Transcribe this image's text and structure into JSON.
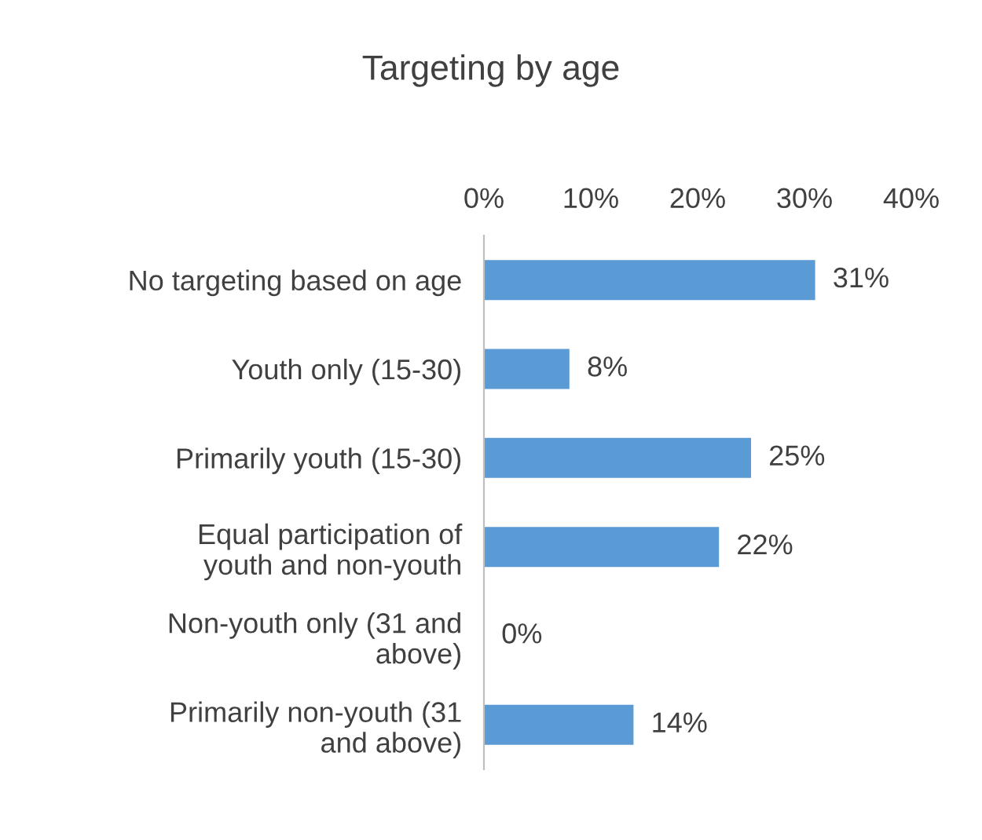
{
  "chart_data": {
    "type": "bar",
    "orientation": "horizontal",
    "title": "Targeting by age",
    "categories": [
      "No targeting based on age",
      "Youth only (15-30)",
      "Primarily youth (15-30)",
      "Equal participation of\nyouth and non-youth",
      "Non-youth only (31 and\nabove)",
      "Primarily non-youth (31\nand above)"
    ],
    "values": [
      31,
      8,
      25,
      22,
      0,
      14
    ],
    "value_labels": [
      "31%",
      "8%",
      "25%",
      "22%",
      "0%",
      "14%"
    ],
    "color": "#5b9bd5",
    "xlim": [
      0,
      40
    ],
    "xticks": [
      {
        "value": 0,
        "label": "0%"
      },
      {
        "value": 10,
        "label": "10%"
      },
      {
        "value": 20,
        "label": "20%"
      },
      {
        "value": 30,
        "label": "30%"
      },
      {
        "value": 40,
        "label": "40%"
      }
    ],
    "grid": false,
    "legend": false
  }
}
